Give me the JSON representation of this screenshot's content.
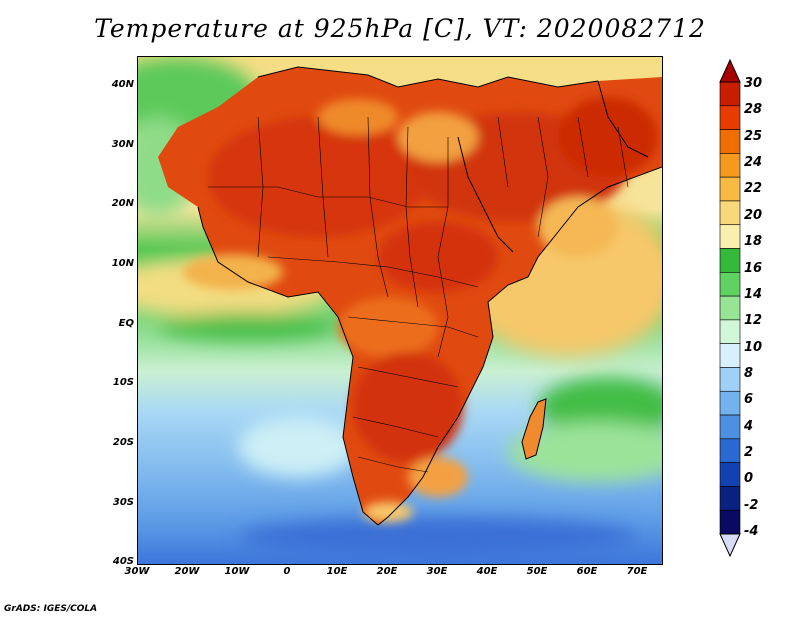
{
  "title": "Temperature at 925hPa [C], VT: 2020082712",
  "footer": "GrADS: IGES/COLA",
  "map": {
    "projection": "latlon",
    "lon_range": [
      -30,
      75
    ],
    "lat_range": [
      -40,
      45
    ],
    "lat_ticks": [
      {
        "label": "40N"
      },
      {
        "label": "30N"
      },
      {
        "label": "20N"
      },
      {
        "label": "10N"
      },
      {
        "label": "EQ"
      },
      {
        "label": "10S"
      },
      {
        "label": "20S"
      },
      {
        "label": "30S"
      },
      {
        "label": "40S"
      }
    ],
    "lon_ticks": [
      {
        "label": "30W"
      },
      {
        "label": "20W"
      },
      {
        "label": "10W"
      },
      {
        "label": "0"
      },
      {
        "label": "10E"
      },
      {
        "label": "20E"
      },
      {
        "label": "30E"
      },
      {
        "label": "40E"
      },
      {
        "label": "50E"
      },
      {
        "label": "60E"
      },
      {
        "label": "70E"
      }
    ]
  },
  "colorbar": {
    "labels": [
      "30",
      "28",
      "25",
      "24",
      "22",
      "20",
      "18",
      "16",
      "14",
      "12",
      "10",
      "8",
      "6",
      "4",
      "2",
      "0",
      "-2",
      "-4"
    ],
    "colors": [
      "#c81e00",
      "#e63c00",
      "#f06d00",
      "#f59a1e",
      "#f7ba42",
      "#f8d878",
      "#fbefae",
      "#35b93a",
      "#5fd262",
      "#96e494",
      "#d2f6d8",
      "#d8f0fb",
      "#9fd0f5",
      "#72b3ee",
      "#4d8fe1",
      "#2b69d2",
      "#1242b2",
      "#0b2180",
      "#0a0a60"
    ],
    "end_colors": {
      "top": "#a80000",
      "bottom": "#d6dcf6"
    }
  }
}
